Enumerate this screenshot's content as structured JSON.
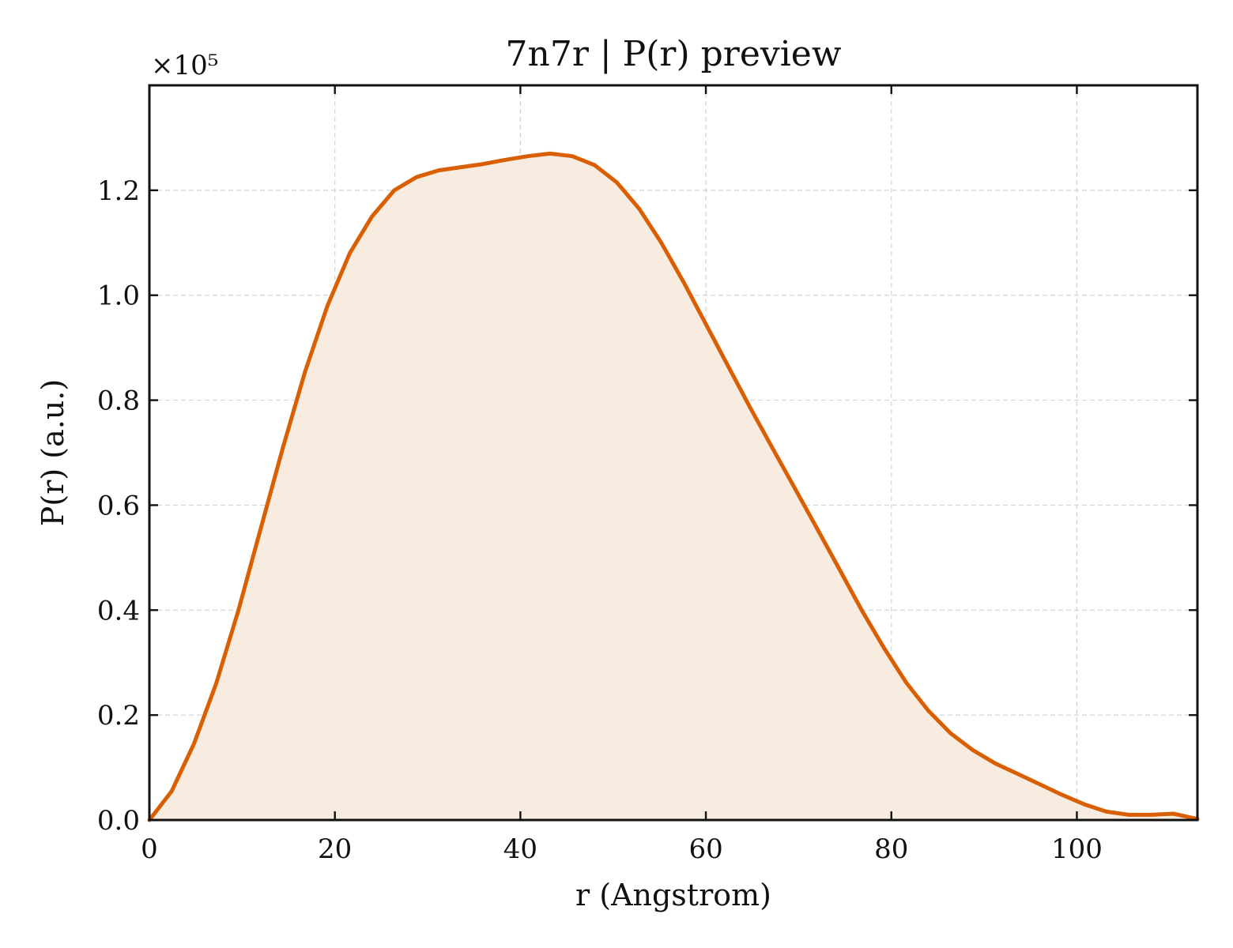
{
  "chart_data": {
    "type": "area",
    "title": "7n7r | P(r) preview",
    "xlabel": "r (Angstrom)",
    "ylabel": "P(r) (a.u.)",
    "y_multiplier_label": "×10⁵",
    "xlim": [
      0,
      113
    ],
    "ylim": [
      0,
      1.4
    ],
    "xticks": [
      0,
      20,
      40,
      60,
      80,
      100
    ],
    "xtick_labels": [
      "0",
      "20",
      "40",
      "60",
      "80",
      "100"
    ],
    "yticks": [
      0.0,
      0.2,
      0.4,
      0.6,
      0.8,
      1.0,
      1.2
    ],
    "ytick_labels": [
      "0.0",
      "0.2",
      "0.4",
      "0.6",
      "0.8",
      "1.0",
      "1.2"
    ],
    "grid": true,
    "line_color": "#d95f02",
    "fill_color": "#f8ebe0",
    "series": [
      {
        "x": [
          0,
          2.4,
          4.8,
          7.2,
          9.6,
          12.0,
          14.4,
          16.8,
          19.2,
          21.6,
          24.0,
          26.4,
          28.8,
          31.2,
          33.6,
          36.0,
          38.4,
          40.8,
          43.2,
          45.6,
          48.0,
          50.4,
          52.8,
          55.2,
          57.6,
          60.0,
          62.4,
          64.8,
          67.2,
          69.6,
          72.0,
          74.4,
          76.8,
          79.2,
          81.6,
          84.0,
          86.4,
          88.8,
          91.2,
          93.6,
          96.0,
          98.4,
          100.8,
          103.2,
          105.6,
          108.0,
          110.4,
          113.0
        ],
        "y": [
          0.0,
          0.055,
          0.145,
          0.26,
          0.4,
          0.555,
          0.71,
          0.855,
          0.98,
          1.08,
          1.15,
          1.2,
          1.225,
          1.238,
          1.244,
          1.25,
          1.258,
          1.265,
          1.27,
          1.265,
          1.248,
          1.215,
          1.165,
          1.1,
          1.025,
          0.945,
          0.865,
          0.785,
          0.708,
          0.632,
          0.555,
          0.478,
          0.4,
          0.328,
          0.262,
          0.208,
          0.165,
          0.133,
          0.108,
          0.088,
          0.068,
          0.048,
          0.03,
          0.016,
          0.01,
          0.01,
          0.012,
          0.002
        ]
      }
    ]
  }
}
